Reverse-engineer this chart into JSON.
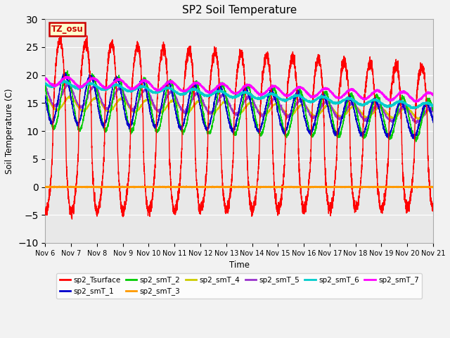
{
  "title": "SP2 Soil Temperature",
  "xlabel": "Time",
  "ylabel": "Soil Temperature (C)",
  "ylim": [
    -10,
    30
  ],
  "background_color": "#e8e8e8",
  "fig_bg": "#f2f2f2",
  "tz_label": "TZ_osu",
  "tz_bg": "#ffffcc",
  "tz_border": "#cc0000",
  "series_colors": {
    "sp2_Tsurface": "#ff0000",
    "sp2_smT_1": "#0000cc",
    "sp2_smT_2": "#00cc00",
    "sp2_smT_3": "#ff9900",
    "sp2_smT_4": "#cccc00",
    "sp2_smT_5": "#9933cc",
    "sp2_smT_6": "#00cccc",
    "sp2_smT_7": "#ff00ff"
  },
  "tick_labels": [
    "Nov 6",
    "Nov 7",
    "Nov 8",
    "Nov 9",
    "Nov 10",
    "Nov 11",
    "Nov 12",
    "Nov 13",
    "Nov 14",
    "Nov 15",
    "Nov 16",
    "Nov 17",
    "Nov 18",
    "Nov 19",
    "Nov 20",
    "Nov 21"
  ],
  "yticks": [
    -10,
    -5,
    0,
    5,
    10,
    15,
    20,
    25,
    30
  ],
  "n_days": 15
}
